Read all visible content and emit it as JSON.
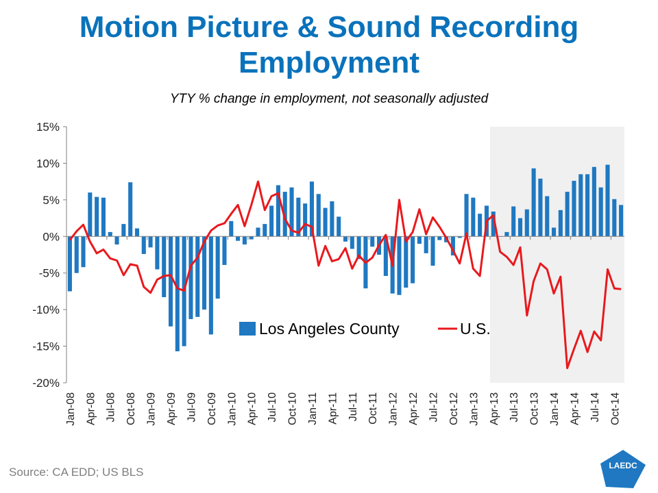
{
  "title_line1": "Motion Picture & Sound Recording",
  "title_line2": "Employment",
  "subtitle": "YTY % change in employment, not seasonally adjusted",
  "source": "Source: CA EDD; US BLS",
  "logo_text": "LAEDC",
  "colors": {
    "bar": "#1f78c1",
    "line": "#e8191d",
    "shade": "#f0f0f0",
    "title": "#0a72bb"
  },
  "chart_data": {
    "type": "bar",
    "ylim": [
      -20,
      15
    ],
    "yticks": [
      15,
      10,
      5,
      0,
      -5,
      -10,
      -15,
      -20
    ],
    "ytick_labels": [
      "15%",
      "10%",
      "5%",
      "0%",
      "-5%",
      "-10%",
      "-15%",
      "-20%"
    ],
    "xtick_labels": [
      "Jan-08",
      "Apr-08",
      "Jul-08",
      "Oct-08",
      "Jan-09",
      "Apr-09",
      "Jul-09",
      "Oct-09",
      "Jan-10",
      "Apr-10",
      "Jul-10",
      "Oct-10",
      "Jan-11",
      "Apr-11",
      "Jul-11",
      "Oct-11",
      "Jan-12",
      "Apr-12",
      "Jul-12",
      "Oct-12",
      "Jan-13",
      "Apr-13",
      "Jul-13",
      "Oct-13",
      "Jan-14",
      "Apr-14",
      "Jul-14",
      "Oct-14"
    ],
    "shaded_start": "Apr-13",
    "legend_placement": "bottom-center",
    "series": [
      {
        "name": "Los Angeles County",
        "type": "bar",
        "values": [
          -7.5,
          -5,
          -4.2,
          6,
          5.4,
          5.3,
          0.6,
          -1.1,
          1.7,
          7.4,
          1.1,
          -2.4,
          -1.5,
          -4.5,
          -8.3,
          -12.3,
          -15.7,
          -15,
          -11.3,
          -11,
          -10,
          -13.4,
          -8.5,
          -3.9,
          2.1,
          -0.6,
          -1.1,
          -0.4,
          1.2,
          1.7,
          4.2,
          7,
          6.1,
          6.7,
          5.3,
          4.5,
          7.5,
          5.8,
          3.9,
          4.8,
          2.7,
          -0.7,
          -1.7,
          -3.1,
          -7.1,
          -1.4,
          -2.5,
          -5.4,
          -7.8,
          -8,
          -7,
          -6.4,
          -1,
          -2.3,
          -4,
          -0.5,
          -0.8,
          -2.6,
          -0.2,
          5.8,
          5.3,
          3.1,
          4.2,
          3.4,
          0,
          0.6,
          4.1,
          2.5,
          3.7,
          9.3,
          7.9,
          5.5,
          1.2,
          3.6,
          6.1,
          7.6,
          8.5,
          8.5,
          9.5,
          6.7,
          9.8,
          5.1,
          4.3
        ]
      },
      {
        "name": "U.S.",
        "type": "line",
        "values": [
          -0.5,
          0.7,
          1.6,
          -0.7,
          -2.3,
          -1.8,
          -3,
          -3.3,
          -5.3,
          -3.8,
          -4,
          -6.9,
          -7.7,
          -5.9,
          -5.4,
          -5.3,
          -7.1,
          -7.4,
          -4,
          -2.9,
          -0.7,
          0.8,
          1.5,
          1.8,
          3.1,
          4.3,
          1.4,
          4.3,
          7.5,
          3.6,
          5.5,
          5.9,
          2.4,
          0.8,
          0.5,
          1.7,
          1.3,
          -4,
          -1.3,
          -3.4,
          -3.1,
          -1.6,
          -4.4,
          -2.6,
          -3.6,
          -2.9,
          -1.2,
          0.2,
          -4,
          5,
          -0.7,
          0.6,
          3.7,
          0.3,
          2.6,
          1.3,
          -0.2,
          -1.9,
          -3.7,
          0.4,
          -4.4,
          -5.4,
          2.1,
          2.9,
          -2.1,
          -2.8,
          -3.9,
          -1.5,
          -10.8,
          -6.1,
          -3.7,
          -4.5,
          -7.8,
          -5.5,
          -18,
          -15.4,
          -12.9,
          -15.8,
          -13,
          -14.2,
          -4.5,
          -7.1,
          -7.2
        ]
      }
    ]
  }
}
